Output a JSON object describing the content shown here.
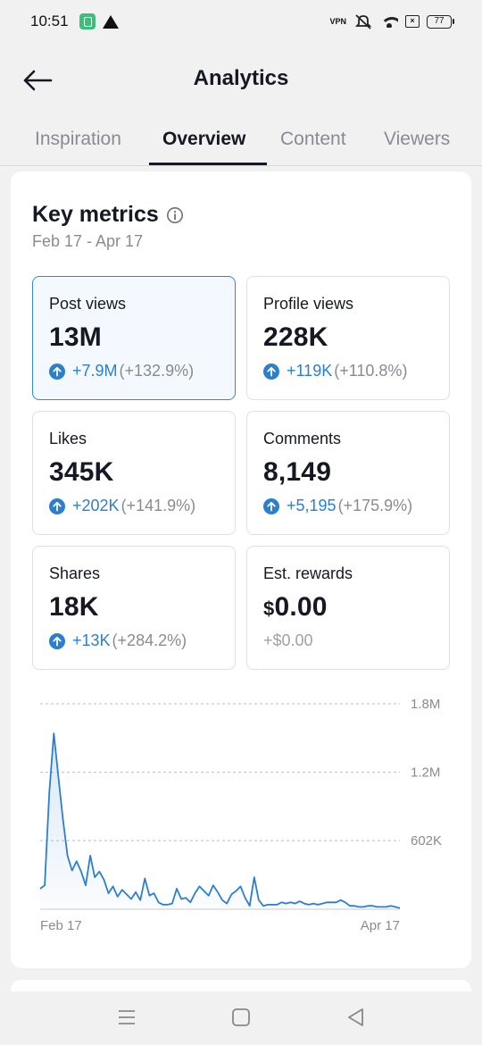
{
  "status_bar": {
    "time": "10:51",
    "icons": [
      "app-icon",
      "warning-icon",
      "vpn-icon",
      "mute-icon",
      "wifi-icon",
      "sim-icon",
      "battery-icon"
    ],
    "vpn_text": "VPN",
    "battery_level": "77"
  },
  "header": {
    "title": "Analytics",
    "back_icon": "back-arrow-icon"
  },
  "tabs": [
    {
      "label": "Inspiration",
      "active": false
    },
    {
      "label": "Overview",
      "active": true
    },
    {
      "label": "Content",
      "active": false
    },
    {
      "label": "Viewers",
      "active": false
    }
  ],
  "key_metrics": {
    "title": "Key metrics",
    "date_range": "Feb 17 - Apr 17",
    "metrics": [
      {
        "label": "Post views",
        "value": "13M",
        "change": "+7.9M",
        "change_pct": "(+132.9%)",
        "selected": true
      },
      {
        "label": "Profile views",
        "value": "228K",
        "change": "+119K",
        "change_pct": "(+110.8%)",
        "selected": false
      },
      {
        "label": "Likes",
        "value": "345K",
        "change": "+202K",
        "change_pct": "(+141.9%)",
        "selected": false
      },
      {
        "label": "Comments",
        "value": "8,149",
        "change": "+5,195",
        "change_pct": "(+175.9%)",
        "selected": false
      },
      {
        "label": "Shares",
        "value": "18K",
        "change": "+13K",
        "change_pct": "(+284.2%)",
        "selected": false
      },
      {
        "label": "Est. rewards",
        "value_currency": "$",
        "value": "0.00",
        "change": "+$0.00",
        "selected": false
      }
    ]
  },
  "colors": {
    "accent": "#2c7fcf",
    "selected_border": "#2f87d8",
    "selected_bg": "#f3f9fe",
    "muted": "#8a8b91"
  },
  "chart_data": {
    "type": "area",
    "series_metric": "Post views",
    "x_start_label": "Feb 17",
    "x_end_label": "Apr 17",
    "y_tick_labels": [
      "1.8M",
      "1.2M",
      "602K"
    ],
    "y_ticks": [
      1800000,
      1200000,
      602000
    ],
    "ylim": [
      0,
      1800000
    ],
    "grid": true,
    "values": [
      180000,
      210000,
      1020000,
      1540000,
      1160000,
      790000,
      470000,
      340000,
      420000,
      330000,
      210000,
      470000,
      280000,
      330000,
      260000,
      140000,
      200000,
      110000,
      170000,
      130000,
      90000,
      150000,
      80000,
      270000,
      120000,
      140000,
      60000,
      40000,
      40000,
      50000,
      180000,
      90000,
      100000,
      60000,
      140000,
      200000,
      160000,
      120000,
      210000,
      150000,
      80000,
      50000,
      130000,
      160000,
      200000,
      100000,
      30000,
      280000,
      80000,
      30000,
      40000,
      40000,
      40000,
      60000,
      50000,
      60000,
      50000,
      70000,
      50000,
      40000,
      50000,
      40000,
      50000,
      60000,
      60000,
      60000,
      80000,
      60000,
      30000,
      30000,
      20000,
      20000,
      30000,
      30000,
      20000,
      20000,
      20000,
      30000,
      20000,
      10000
    ]
  },
  "nav_bar": {
    "icons": [
      "menu-icon",
      "home-icon",
      "back-triangle-icon"
    ]
  }
}
